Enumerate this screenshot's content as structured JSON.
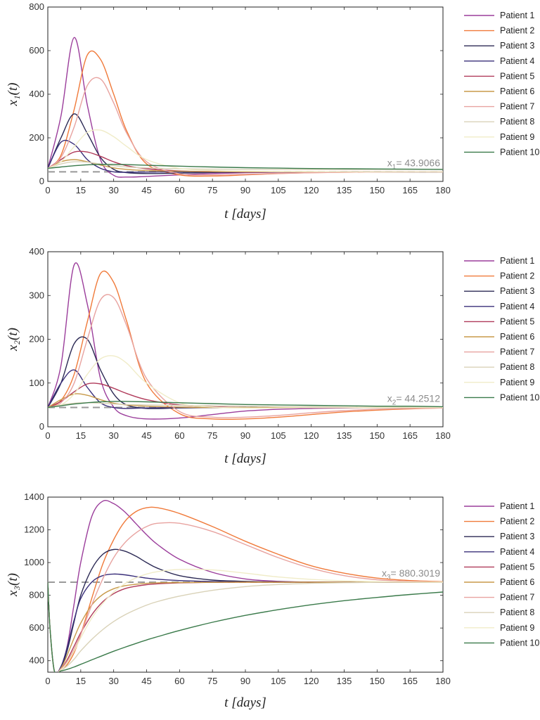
{
  "chart_data": [
    {
      "type": "line",
      "x": [
        0,
        6,
        12,
        18,
        24,
        30,
        36,
        45,
        60,
        75,
        90,
        105,
        120,
        135,
        150,
        165,
        180
      ],
      "xlabel": "t [days]",
      "ylabel": "x₁(t)",
      "xlim": [
        0,
        180
      ],
      "ylim": [
        0,
        800
      ],
      "xticks": [
        0,
        15,
        30,
        45,
        60,
        75,
        90,
        105,
        120,
        135,
        150,
        165,
        180
      ],
      "yticks": [
        0,
        200,
        400,
        600,
        800
      ],
      "legend_position": "right",
      "equilibrium": {
        "value": 43.9066,
        "label": "x",
        "sub": "1",
        "value_text": "= 43.9066"
      },
      "series": [
        {
          "name": "Patient 1",
          "color": "#9b3d9b",
          "values": [
            60,
            300,
            660,
            350,
            100,
            28,
            20,
            23,
            30,
            36,
            40,
            42,
            43,
            44,
            44,
            44,
            44
          ]
        },
        {
          "name": "Patient 2",
          "color": "#f07a3a",
          "values": [
            60,
            120,
            330,
            580,
            560,
            400,
            230,
            80,
            30,
            25,
            30,
            36,
            40,
            42,
            43,
            44,
            44
          ]
        },
        {
          "name": "Patient 3",
          "color": "#2c2a55",
          "values": [
            60,
            200,
            310,
            220,
            110,
            55,
            40,
            36,
            38,
            41,
            43,
            44,
            44,
            44,
            44,
            44,
            44
          ]
        },
        {
          "name": "Patient 4",
          "color": "#3a2f7a",
          "values": [
            60,
            180,
            170,
            100,
            60,
            44,
            42,
            43,
            44,
            44,
            44,
            44,
            44,
            44,
            44,
            44,
            44
          ]
        },
        {
          "name": "Patient 5",
          "color": "#b03a5a",
          "values": [
            60,
            100,
            135,
            135,
            115,
            90,
            72,
            58,
            48,
            45,
            44,
            44,
            44,
            44,
            44,
            44,
            44
          ]
        },
        {
          "name": "Patient 6",
          "color": "#c89a4a",
          "values": [
            60,
            90,
            100,
            90,
            75,
            62,
            55,
            50,
            47,
            45,
            44,
            44,
            44,
            44,
            44,
            44,
            44
          ]
        },
        {
          "name": "Patient 7",
          "color": "#e8a3a0",
          "values": [
            60,
            110,
            250,
            440,
            470,
            360,
            220,
            90,
            35,
            30,
            33,
            37,
            40,
            42,
            43,
            44,
            44
          ]
        },
        {
          "name": "Patient 8",
          "color": "#d9d2b8",
          "values": [
            60,
            80,
            90,
            88,
            80,
            72,
            66,
            62,
            58,
            56,
            55,
            55,
            55,
            55,
            55,
            55,
            55
          ]
        },
        {
          "name": "Patient 9",
          "color": "#f0ecc8",
          "values": [
            60,
            90,
            160,
            225,
            235,
            205,
            160,
            100,
            60,
            50,
            47,
            45,
            45,
            44,
            44,
            44,
            44
          ]
        },
        {
          "name": "Patient 10",
          "color": "#3a7a4a",
          "values": [
            60,
            66,
            72,
            76,
            78,
            78,
            77,
            74,
            70,
            66,
            63,
            61,
            59,
            58,
            57,
            56,
            55
          ]
        }
      ]
    },
    {
      "type": "line",
      "x": [
        0,
        6,
        12,
        18,
        24,
        30,
        36,
        45,
        60,
        75,
        90,
        105,
        120,
        135,
        150,
        165,
        180
      ],
      "xlabel": "t [days]",
      "ylabel": "x₂(t)",
      "xlim": [
        0,
        180
      ],
      "ylim": [
        0,
        400
      ],
      "xticks": [
        0,
        15,
        30,
        45,
        60,
        75,
        90,
        105,
        120,
        135,
        150,
        165,
        180
      ],
      "yticks": [
        0,
        100,
        200,
        300,
        400
      ],
      "legend_position": "right",
      "equilibrium": {
        "value": 44.2512,
        "label": "x",
        "sub": "2",
        "value_text": "= 44.2512"
      },
      "series": [
        {
          "name": "Patient 1",
          "color": "#9b3d9b",
          "values": [
            44,
            140,
            370,
            280,
            110,
            45,
            25,
            18,
            20,
            28,
            36,
            40,
            42,
            43,
            44,
            44,
            44
          ]
        },
        {
          "name": "Patient 2",
          "color": "#f07a3a",
          "values": [
            44,
            60,
            120,
            240,
            350,
            330,
            240,
            100,
            30,
            18,
            18,
            22,
            28,
            34,
            38,
            41,
            43
          ]
        },
        {
          "name": "Patient 3",
          "color": "#2c2a55",
          "values": [
            44,
            100,
            190,
            200,
            130,
            75,
            50,
            42,
            43,
            44,
            44,
            44,
            44,
            44,
            44,
            44,
            44
          ]
        },
        {
          "name": "Patient 4",
          "color": "#3a2f7a",
          "values": [
            44,
            100,
            130,
            90,
            55,
            44,
            42,
            43,
            44,
            44,
            44,
            44,
            44,
            44,
            44,
            44,
            44
          ]
        },
        {
          "name": "Patient 5",
          "color": "#b03a5a",
          "values": [
            44,
            58,
            80,
            98,
            98,
            88,
            76,
            62,
            50,
            46,
            44,
            44,
            44,
            44,
            44,
            44,
            44
          ]
        },
        {
          "name": "Patient 6",
          "color": "#c89a4a",
          "values": [
            44,
            62,
            75,
            72,
            62,
            54,
            50,
            47,
            45,
            44,
            44,
            44,
            44,
            44,
            44,
            44,
            44
          ]
        },
        {
          "name": "Patient 7",
          "color": "#e8a3a0",
          "values": [
            44,
            55,
            100,
            200,
            290,
            295,
            230,
            110,
            35,
            22,
            22,
            26,
            32,
            37,
            40,
            42,
            43
          ]
        },
        {
          "name": "Patient 8",
          "color": "#d9d2b8",
          "values": [
            44,
            50,
            54,
            55,
            54,
            52,
            51,
            50,
            49,
            48,
            47,
            46,
            46,
            45,
            45,
            45,
            45
          ]
        },
        {
          "name": "Patient 9",
          "color": "#f0ecc8",
          "values": [
            44,
            50,
            75,
            120,
            155,
            162,
            145,
            100,
            55,
            45,
            43,
            43,
            44,
            44,
            44,
            44,
            44
          ]
        },
        {
          "name": "Patient 10",
          "color": "#3a7a4a",
          "values": [
            44,
            48,
            52,
            55,
            57,
            58,
            58,
            57,
            55,
            53,
            51,
            50,
            49,
            48,
            47,
            47,
            46
          ]
        }
      ]
    },
    {
      "type": "line",
      "x": [
        0,
        1,
        3,
        6,
        9,
        12,
        15,
        20,
        25,
        30,
        35,
        40,
        45,
        50,
        60,
        75,
        90,
        105,
        120,
        135,
        150,
        165,
        180
      ],
      "xlabel": "t [days]",
      "ylabel": "x₃(t)",
      "xlim": [
        0,
        180
      ],
      "ylim": [
        330,
        1400
      ],
      "xticks": [
        0,
        15,
        30,
        45,
        60,
        75,
        90,
        105,
        120,
        135,
        150,
        165,
        180
      ],
      "yticks": [
        400,
        600,
        800,
        1000,
        1200,
        1400
      ],
      "legend_position": "right",
      "equilibrium": {
        "value": 880.3019,
        "label": "x",
        "sub": "3",
        "value_text": "= 880.3019"
      },
      "series": [
        {
          "name": "Patient 1",
          "color": "#9b3d9b",
          "values": [
            880,
            600,
            335,
            360,
            500,
            750,
            1000,
            1280,
            1375,
            1360,
            1310,
            1240,
            1170,
            1110,
            1020,
            940,
            900,
            885,
            881,
            880,
            880,
            880,
            880
          ]
        },
        {
          "name": "Patient 2",
          "color": "#f07a3a",
          "values": [
            880,
            600,
            335,
            345,
            380,
            450,
            560,
            780,
            990,
            1140,
            1250,
            1310,
            1335,
            1335,
            1300,
            1220,
            1130,
            1050,
            980,
            935,
            905,
            890,
            883
          ]
        },
        {
          "name": "Patient 3",
          "color": "#2c2a55",
          "values": [
            880,
            600,
            335,
            360,
            470,
            640,
            800,
            960,
            1050,
            1080,
            1070,
            1040,
            1000,
            965,
            920,
            893,
            885,
            882,
            881,
            880,
            880,
            880,
            880
          ]
        },
        {
          "name": "Patient 4",
          "color": "#3a2f7a",
          "values": [
            880,
            600,
            335,
            365,
            490,
            650,
            780,
            880,
            920,
            930,
            925,
            915,
            905,
            898,
            890,
            884,
            881,
            880,
            880,
            880,
            880,
            880,
            880
          ]
        },
        {
          "name": "Patient 5",
          "color": "#b03a5a",
          "values": [
            880,
            600,
            335,
            350,
            410,
            490,
            570,
            680,
            760,
            810,
            840,
            855,
            865,
            870,
            876,
            879,
            880,
            880,
            880,
            880,
            880,
            880,
            880
          ]
        },
        {
          "name": "Patient 6",
          "color": "#c89a4a",
          "values": [
            880,
            600,
            335,
            355,
            440,
            540,
            630,
            740,
            805,
            840,
            858,
            867,
            873,
            876,
            878,
            879,
            880,
            880,
            880,
            880,
            880,
            880,
            880
          ]
        },
        {
          "name": "Patient 7",
          "color": "#e8a3a0",
          "values": [
            880,
            600,
            335,
            350,
            400,
            470,
            560,
            740,
            900,
            1030,
            1120,
            1180,
            1220,
            1240,
            1240,
            1190,
            1110,
            1030,
            965,
            920,
            895,
            885,
            881
          ]
        },
        {
          "name": "Patient 8",
          "color": "#d9d2b8",
          "values": [
            880,
            600,
            335,
            342,
            370,
            410,
            460,
            530,
            590,
            640,
            680,
            712,
            740,
            762,
            795,
            830,
            853,
            866,
            873,
            877,
            879,
            880,
            880
          ]
        },
        {
          "name": "Patient 9",
          "color": "#f0ecc8",
          "values": [
            880,
            600,
            335,
            345,
            390,
            460,
            540,
            660,
            750,
            820,
            870,
            905,
            930,
            945,
            958,
            955,
            935,
            912,
            897,
            888,
            884,
            881,
            880
          ]
        },
        {
          "name": "Patient 10",
          "color": "#3a7a4a",
          "values": [
            880,
            600,
            335,
            338,
            348,
            362,
            378,
            405,
            432,
            458,
            482,
            505,
            527,
            547,
            585,
            635,
            677,
            712,
            742,
            767,
            787,
            805,
            820
          ]
        }
      ]
    }
  ]
}
